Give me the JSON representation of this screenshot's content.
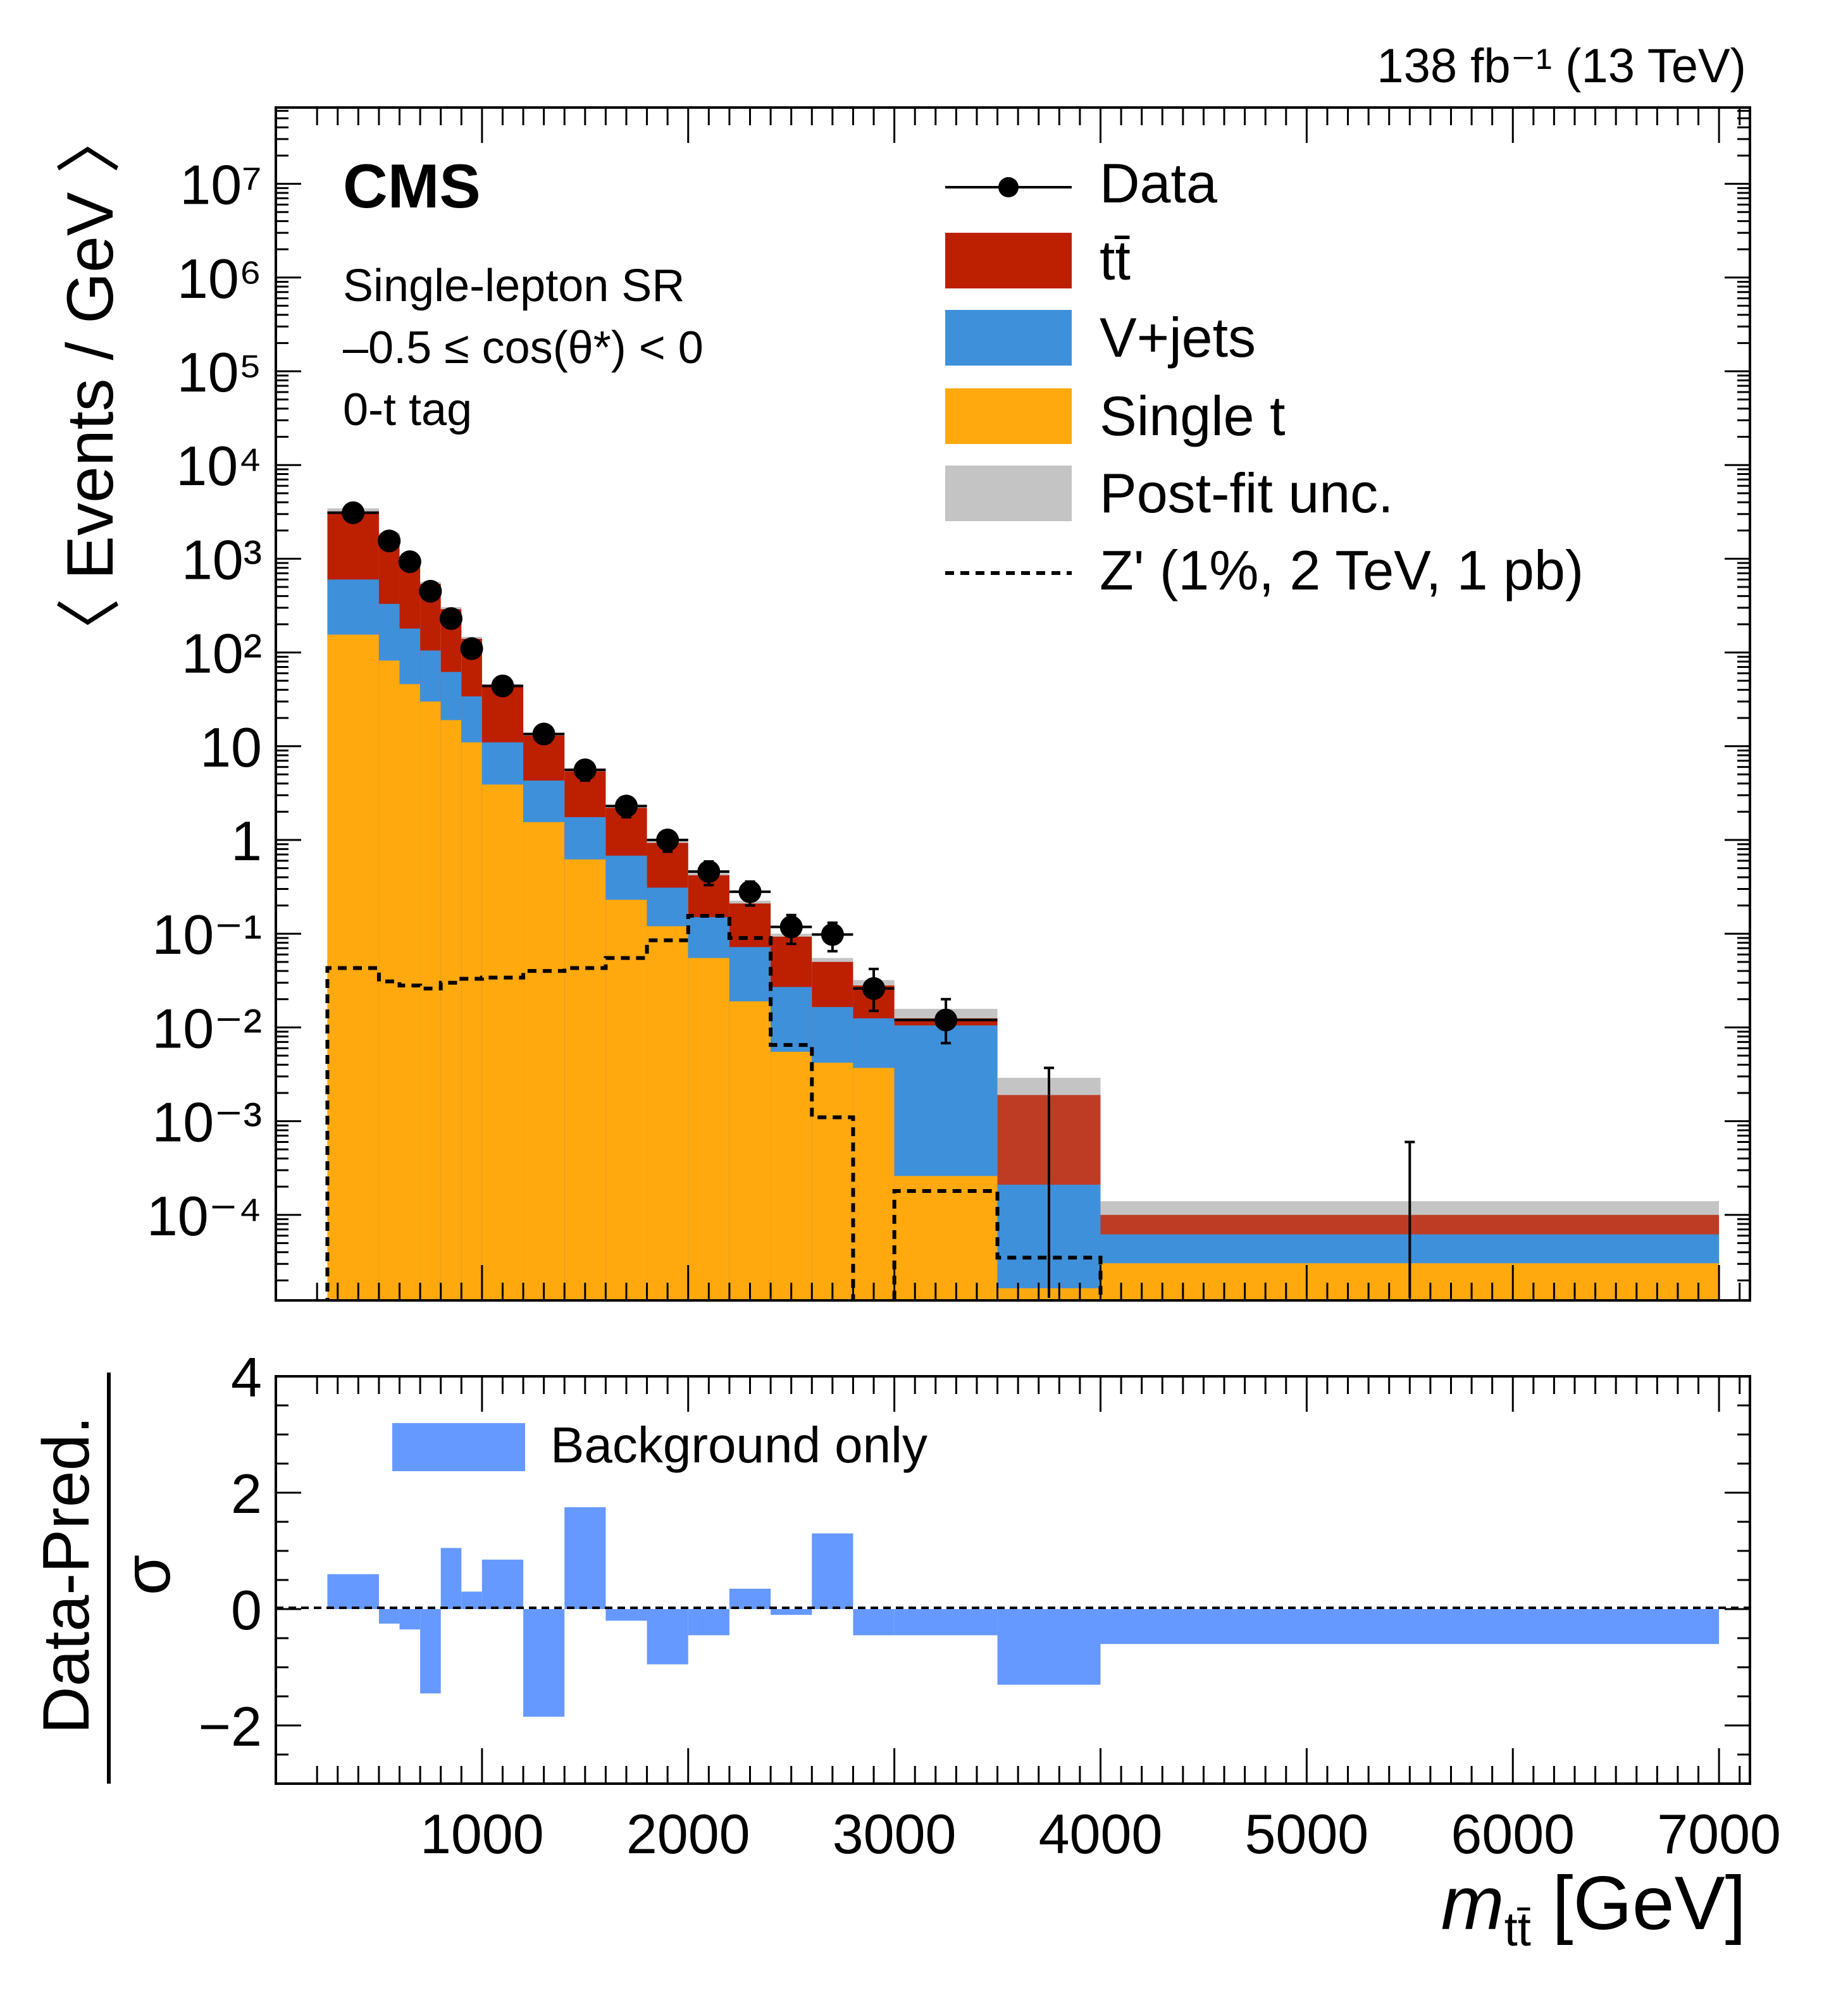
{
  "lumi_label": "138 fb⁻¹ (13 TeV)",
  "cms_label": "CMS",
  "region_lines": [
    "Single-lepton SR",
    "–0.5 ≤ cos(θ*) < 0",
    "0-t tag"
  ],
  "colors": {
    "ttbar": "#bd1f01",
    "vjets": "#3f90da",
    "singlet": "#ffa90e",
    "unc": "#c4c4c4",
    "ratio": "#6699ff"
  },
  "legend": {
    "data": "Data",
    "ttbar": "tt̄",
    "vjets": "V+jets",
    "singlet": "Single t",
    "unc": "Post-fit unc.",
    "zprime": "Z' (1%, 2 TeV, 1 pb)"
  },
  "ratio_legend": "Background only",
  "chart_data": [
    {
      "type": "bar",
      "subtype": "stacked-histogram-log",
      "ylabel": "〈 Events / GeV 〉",
      "yscale": "log",
      "ylim": [
        1e-05,
        50000000.0
      ],
      "xlim": [
        0,
        7150
      ],
      "y_tick_labels": [
        "10⁷",
        "10⁶",
        "10⁵",
        "10⁴",
        "10³",
        "10²",
        "10",
        "1",
        "10⁻¹",
        "10⁻²",
        "10⁻³",
        "10⁻⁴"
      ],
      "y_tick_values": [
        10000000.0,
        1000000.0,
        100000.0,
        10000.0,
        1000.0,
        100.0,
        10,
        1,
        0.1,
        0.01,
        0.001,
        0.0001
      ],
      "bin_edges": [
        250,
        500,
        600,
        700,
        800,
        900,
        1000,
        1200,
        1400,
        1600,
        1800,
        2000,
        2200,
        2400,
        2600,
        2800,
        3000,
        3500,
        4000,
        7000
      ],
      "series": [
        {
          "name": "Single t",
          "values": [
            155,
            82,
            46,
            30,
            19,
            11,
            3.9,
            1.55,
            0.62,
            0.23,
            0.12,
            0.055,
            0.019,
            0.0055,
            0.0042,
            0.0037,
            0.00026,
            1.65e-05,
            3.05e-05
          ]
        },
        {
          "name": "V+jets",
          "values": [
            600,
            330,
            180,
            105,
            62,
            34,
            11,
            4.3,
            1.75,
            0.68,
            0.31,
            0.15,
            0.072,
            0.027,
            0.0165,
            0.0125,
            0.0105,
            0.00021,
            6.2e-05
          ]
        },
        {
          "name": "tt̄",
          "values": [
            3200,
            1800,
            960,
            540,
            290,
            140,
            44,
            13,
            5.4,
            2.2,
            0.93,
            0.42,
            0.21,
            0.093,
            0.05,
            0.028,
            0.0125,
            0.0019,
            0.0001
          ]
        },
        {
          "name": "Post-fit unc.",
          "values": [
            3450,
            1900,
            1010,
            565,
            305,
            147,
            46,
            13.7,
            5.7,
            2.35,
            0.99,
            0.45,
            0.225,
            0.1,
            0.055,
            0.032,
            0.0158,
            0.0029,
            0.00014
          ]
        }
      ],
      "data_points": {
        "x": [
          375,
          550,
          650,
          750,
          850,
          950,
          1100,
          1300,
          1500,
          1700,
          1900,
          2100,
          2300,
          2500,
          2700,
          2900,
          3250,
          3750,
          5500
        ],
        "y": [
          3100,
          1550,
          930,
          450,
          230,
          110,
          44,
          13.5,
          5.6,
          2.3,
          1.0,
          0.46,
          0.28,
          0.118,
          0.098,
          0.026,
          0.012,
          0,
          0
        ],
        "err_up": [
          60,
          40,
          30,
          22,
          15,
          10,
          5,
          2.5,
          1.3,
          0.55,
          0.25,
          0.13,
          0.08,
          0.04,
          0.033,
          0.016,
          0.008,
          0.0037,
          0.0006
        ],
        "err_down": [
          60,
          40,
          30,
          22,
          15,
          10,
          5,
          2.5,
          1.3,
          0.55,
          0.25,
          0.13,
          0.08,
          0.04,
          0.033,
          0.011,
          0.0052,
          0,
          0
        ]
      },
      "zprime": {
        "values": [
          0.043,
          0.031,
          0.028,
          0.026,
          0.03,
          0.033,
          0.034,
          0.04,
          0.043,
          0.055,
          0.085,
          0.155,
          0.09,
          0.0065,
          0.0011,
          1e-05,
          0.00018,
          3.5e-05,
          1e-05
        ]
      }
    },
    {
      "type": "bar",
      "subtype": "ratio-histogram",
      "ylabel": "Data-Pred.",
      "ylabel_denominator": "σ",
      "xlabel_main": "m",
      "xlabel_sub": "tt̄",
      "xlabel_unit": " [GeV]",
      "ylim": [
        -3,
        4
      ],
      "xlim": [
        0,
        7150
      ],
      "x_ticks": [
        1000,
        2000,
        3000,
        4000,
        5000,
        6000,
        7000
      ],
      "x_tick_labels": [
        "1000",
        "2000",
        "3000",
        "4000",
        "5000",
        "6000",
        "7000"
      ],
      "y_ticks": [
        -2,
        0,
        2,
        4
      ],
      "y_tick_labels": [
        "−2",
        "0",
        "2",
        "4"
      ],
      "bin_edges": [
        250,
        500,
        600,
        700,
        800,
        900,
        1000,
        1200,
        1400,
        1600,
        1800,
        2000,
        2200,
        2400,
        2600,
        2800,
        3000,
        3500,
        4000,
        7000
      ],
      "values": [
        0.6,
        -0.25,
        -0.35,
        -1.45,
        1.05,
        0.3,
        0.85,
        -1.85,
        1.75,
        -0.2,
        -0.95,
        -0.45,
        0.35,
        -0.1,
        1.3,
        -0.45,
        -0.45,
        -1.3,
        -0.6
      ]
    }
  ]
}
